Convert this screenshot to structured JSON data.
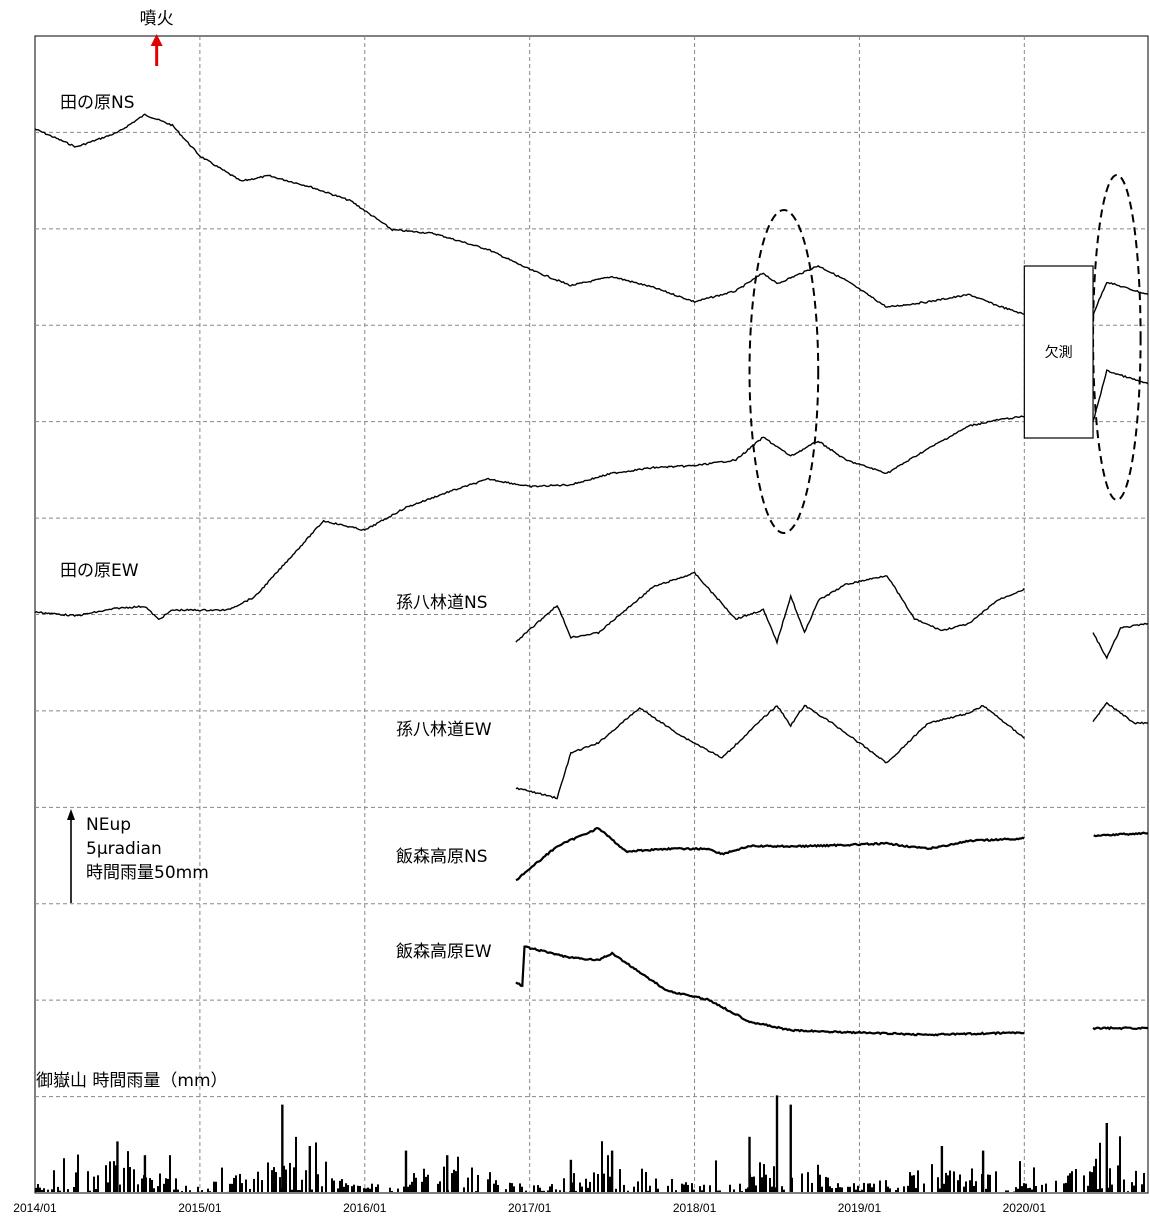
{
  "chart_data": {
    "type": "line",
    "x_axis": {
      "type": "date",
      "range": [
        "2014-01",
        "2020-10"
      ],
      "tick_labels": [
        "2014/01",
        "2015/01",
        "2016/01",
        "2017/01",
        "2018/01",
        "2019/01",
        "2020/01"
      ]
    },
    "grid": true,
    "eruption": {
      "label": "噴火",
      "date": "2014-09-27",
      "color": "#e00000"
    },
    "scale_bar": {
      "line1": "NEup",
      "line2": "5μradian",
      "line3": "時間雨量50mm"
    },
    "missing_label": "欠測",
    "missing_period": [
      "2020-01-01",
      "2020-06-01"
    ],
    "highlight_periods": [
      [
        "2018-05-01",
        "2018-10-01"
      ],
      [
        "2020-06-01",
        "2020-09-15"
      ]
    ],
    "series": [
      {
        "name": "田の原NS",
        "points": [
          [
            "2014-01",
            0
          ],
          [
            "2014-04",
            -1.0
          ],
          [
            "2014-07",
            -0.2
          ],
          [
            "2014-09",
            0.8
          ],
          [
            "2014-11",
            0.2
          ],
          [
            "2015-01",
            -1.5
          ],
          [
            "2015-04",
            -2.9
          ],
          [
            "2015-06",
            -2.6
          ],
          [
            "2015-09",
            -3.2
          ],
          [
            "2015-12",
            -4.0
          ],
          [
            "2016-03",
            -5.6
          ],
          [
            "2016-06",
            -5.8
          ],
          [
            "2016-10",
            -6.7
          ],
          [
            "2017-01",
            -7.8
          ],
          [
            "2017-04",
            -8.7
          ],
          [
            "2017-07",
            -8.2
          ],
          [
            "2017-10",
            -8.8
          ],
          [
            "2018-01",
            -9.6
          ],
          [
            "2018-04",
            -9.0
          ],
          [
            "2018-06",
            -8.0
          ],
          [
            "2018-07",
            -8.6
          ],
          [
            "2018-10",
            -7.6
          ],
          [
            "2018-12",
            -8.4
          ],
          [
            "2019-03",
            -9.9
          ],
          [
            "2019-06",
            -9.6
          ],
          [
            "2019-09",
            -9.2
          ],
          [
            "2019-11",
            -9.8
          ],
          [
            "2020-01",
            -10.3
          ],
          [
            "2020-06",
            -10.3
          ],
          [
            "2020-07",
            -8.5
          ],
          [
            "2020-10",
            -9.2
          ]
        ]
      },
      {
        "name": "田の原EW",
        "points": [
          [
            "2014-01",
            0
          ],
          [
            "2014-04",
            -0.2
          ],
          [
            "2014-07",
            0.2
          ],
          [
            "2014-09",
            0.3
          ],
          [
            "2014-10",
            -0.4
          ],
          [
            "2014-11",
            0.1
          ],
          [
            "2015-03",
            0.1
          ],
          [
            "2015-05",
            0.8
          ],
          [
            "2015-07",
            2.4
          ],
          [
            "2015-10",
            4.8
          ],
          [
            "2016-01",
            4.3
          ],
          [
            "2016-04",
            5.5
          ],
          [
            "2016-07",
            6.3
          ],
          [
            "2016-10",
            7.0
          ],
          [
            "2017-01",
            6.6
          ],
          [
            "2017-04",
            6.7
          ],
          [
            "2017-07",
            7.3
          ],
          [
            "2017-10",
            7.6
          ],
          [
            "2018-01",
            7.7
          ],
          [
            "2018-04",
            8.0
          ],
          [
            "2018-06",
            9.2
          ],
          [
            "2018-08",
            8.2
          ],
          [
            "2018-10",
            9.0
          ],
          [
            "2018-12",
            8.0
          ],
          [
            "2019-03",
            7.3
          ],
          [
            "2019-06",
            8.6
          ],
          [
            "2019-09",
            9.8
          ],
          [
            "2019-11",
            10.1
          ],
          [
            "2020-01",
            10.3
          ],
          [
            "2020-02",
            10.0
          ],
          [
            "2020-06",
            10.0
          ],
          [
            "2020-07",
            12.7
          ],
          [
            "2020-10",
            12.0
          ]
        ]
      },
      {
        "name": "孫八林道NS",
        "points": [
          [
            "2016-12",
            0
          ],
          [
            "2017-03",
            1.6
          ],
          [
            "2017-04",
            0.2
          ],
          [
            "2017-06",
            0.4
          ],
          [
            "2017-08",
            1.4
          ],
          [
            "2017-10",
            2.4
          ],
          [
            "2018-01",
            3.0
          ],
          [
            "2018-04",
            1.0
          ],
          [
            "2018-06",
            1.4
          ],
          [
            "2018-07",
            0
          ],
          [
            "2018-08",
            2.0
          ],
          [
            "2018-09",
            0.4
          ],
          [
            "2018-10",
            1.8
          ],
          [
            "2018-12",
            2.5
          ],
          [
            "2019-03",
            2.9
          ],
          [
            "2019-05",
            1.0
          ],
          [
            "2019-07",
            0.5
          ],
          [
            "2019-09",
            0.8
          ],
          [
            "2019-11",
            1.8
          ],
          [
            "2020-01",
            2.3
          ],
          [
            "2020-04",
            1.9
          ],
          [
            "2020-06",
            0.4
          ],
          [
            "2020-07",
            -0.7
          ],
          [
            "2020-08",
            0.6
          ],
          [
            "2020-10",
            0.8
          ]
        ]
      },
      {
        "name": "孫八林道EW",
        "points": [
          [
            "2016-12",
            0
          ],
          [
            "2017-03",
            -0.4
          ],
          [
            "2017-04",
            1.4
          ],
          [
            "2017-06",
            1.8
          ],
          [
            "2017-09",
            3.2
          ],
          [
            "2017-12",
            2.1
          ],
          [
            "2018-03",
            1.2
          ],
          [
            "2018-06",
            2.8
          ],
          [
            "2018-07",
            3.3
          ],
          [
            "2018-08",
            2.5
          ],
          [
            "2018-09",
            3.3
          ],
          [
            "2018-11",
            2.6
          ],
          [
            "2019-03",
            1.0
          ],
          [
            "2019-06",
            2.6
          ],
          [
            "2019-09",
            3.0
          ],
          [
            "2019-10",
            3.3
          ],
          [
            "2020-01",
            2.0
          ],
          [
            "2020-04",
            1.2
          ],
          [
            "2020-07",
            3.4
          ],
          [
            "2020-09",
            2.6
          ],
          [
            "2020-10",
            2.6
          ]
        ]
      },
      {
        "name": "飯森高原NS",
        "points": [
          [
            "2016-12",
            0
          ],
          [
            "2017-03",
            1.3
          ],
          [
            "2017-06",
            2.0
          ],
          [
            "2017-08",
            1.1
          ],
          [
            "2017-11",
            1.2
          ],
          [
            "2018-02",
            1.2
          ],
          [
            "2018-03",
            1.0
          ],
          [
            "2018-05",
            1.3
          ],
          [
            "2018-09",
            1.3
          ],
          [
            "2019-03",
            1.4
          ],
          [
            "2019-06",
            1.2
          ],
          [
            "2019-09",
            1.5
          ],
          [
            "2020-01",
            1.6
          ],
          [
            "2020-10",
            1.8
          ]
        ]
      },
      {
        "name": "飯森高原EW",
        "points": [
          [
            "2016-12",
            0
          ],
          [
            "2016-12-15",
            -0.2
          ],
          [
            "2016-12-20",
            1.6
          ],
          [
            "2017-04",
            1.1
          ],
          [
            "2017-06",
            1.0
          ],
          [
            "2017-07",
            1.3
          ],
          [
            "2017-11",
            -0.4
          ],
          [
            "2018-02",
            -0.8
          ],
          [
            "2018-05",
            -1.8
          ],
          [
            "2018-08",
            -2.2
          ],
          [
            "2019-01",
            -2.3
          ],
          [
            "2019-06",
            -2.4
          ],
          [
            "2020-01",
            -2.3
          ],
          [
            "2020-06",
            -2.1
          ],
          [
            "2020-10",
            -2.1
          ]
        ]
      }
    ],
    "rainfall": {
      "label": "御嶽山 時間雨量（mm）",
      "unit": "mm",
      "peaks": [
        [
          "2014-07",
          22
        ],
        [
          "2014-09",
          16
        ],
        [
          "2015-07",
          38
        ],
        [
          "2015-09",
          20
        ],
        [
          "2016-04",
          18
        ],
        [
          "2016-07",
          16
        ],
        [
          "2017-04",
          14
        ],
        [
          "2017-07",
          18
        ],
        [
          "2018-05",
          24
        ],
        [
          "2018-07",
          42
        ],
        [
          "2018-08",
          38
        ],
        [
          "2019-07",
          20
        ],
        [
          "2019-10",
          18
        ],
        [
          "2020-07",
          30
        ]
      ]
    }
  }
}
